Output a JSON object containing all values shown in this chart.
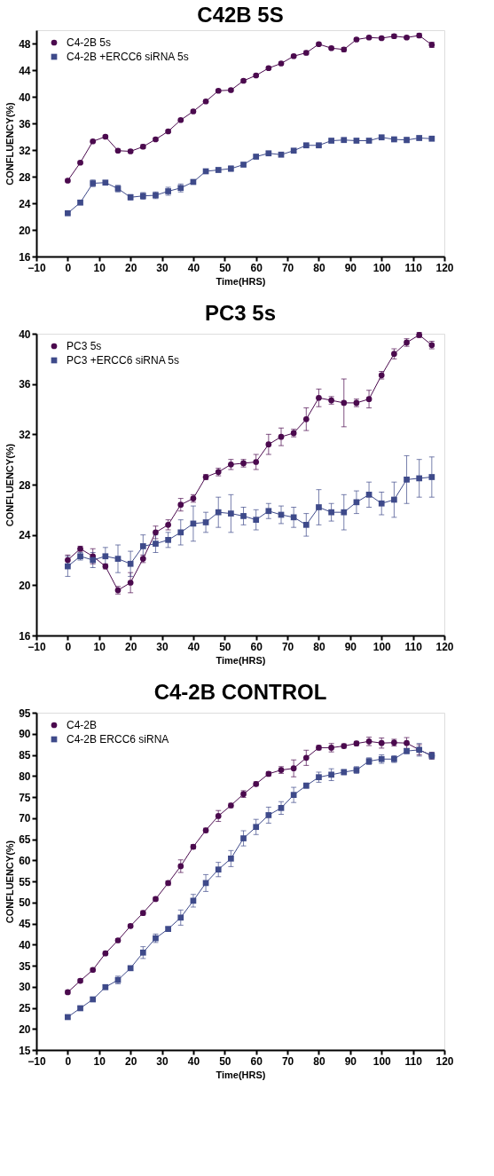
{
  "chart_data": [
    {
      "type": "line",
      "title": "C42B 5S",
      "xlabel": "Time(HRS)",
      "ylabel": "CONFLUENCY(%)",
      "xlim": [
        -10,
        120
      ],
      "xticks": [
        -10,
        0,
        10,
        20,
        30,
        40,
        50,
        60,
        70,
        80,
        90,
        100,
        110,
        120
      ],
      "ylim": [
        16,
        50
      ],
      "yticks": [
        16,
        20,
        24,
        28,
        32,
        36,
        40,
        44,
        48
      ],
      "grid": false,
      "legend": "top left",
      "marker": "circle",
      "line_style": "solid",
      "x": [
        0,
        4,
        8,
        12,
        16,
        20,
        24,
        28,
        32,
        36,
        40,
        44,
        48,
        52,
        56,
        60,
        64,
        68,
        72,
        76,
        80,
        84,
        88,
        92,
        96,
        100,
        104,
        108,
        112,
        116
      ],
      "series": [
        {
          "name": "C4-2B 5s",
          "color": "#4b0a4e",
          "marker": "circle",
          "values": [
            27.4,
            30.1,
            33.3,
            34.0,
            31.9,
            31.8,
            32.5,
            33.6,
            34.8,
            36.5,
            37.8,
            39.3,
            40.9,
            41.0,
            42.4,
            43.2,
            44.3,
            45.0,
            46.1,
            46.6,
            47.9,
            47.3,
            47.1,
            48.6,
            48.9,
            48.8,
            49.1,
            48.9,
            49.2,
            47.8
          ],
          "errors": [
            0.2,
            0.2,
            0.2,
            0.2,
            0.2,
            0.2,
            0.3,
            0.2,
            0.2,
            0.2,
            0.2,
            0.2,
            0.2,
            0.2,
            0.2,
            0.2,
            0.2,
            0.2,
            0.2,
            0.3,
            0.2,
            0.2,
            0.3,
            0.2,
            0.2,
            0.2,
            0.3,
            0.2,
            0.3,
            0.4
          ]
        },
        {
          "name": "C4-2B +ERCC6 siRNA 5s",
          "color": "#3e4a8a",
          "marker": "square",
          "values": [
            22.5,
            24.1,
            27.0,
            27.1,
            26.2,
            24.9,
            25.1,
            25.2,
            25.8,
            26.3,
            27.2,
            28.8,
            29.0,
            29.2,
            29.8,
            31.0,
            31.5,
            31.3,
            31.9,
            32.7,
            32.7,
            33.4,
            33.5,
            33.4,
            33.4,
            33.9,
            33.6,
            33.5,
            33.8,
            33.7
          ],
          "errors": [
            0.2,
            0.3,
            0.5,
            0.3,
            0.5,
            0.4,
            0.5,
            0.5,
            0.6,
            0.6,
            0.3,
            0.2,
            0.3,
            0.4,
            0.2,
            0.2,
            0.2,
            0.2,
            0.2,
            0.2,
            0.2,
            0.2,
            0.2,
            0.2,
            0.2,
            0.2,
            0.2,
            0.4,
            0.3,
            0.2
          ]
        }
      ]
    },
    {
      "type": "line",
      "title": "PC3 5s",
      "xlabel": "Time(HRS)",
      "ylabel": "CONFLUENCY(%)",
      "xlim": [
        -10,
        120
      ],
      "xticks": [
        -10,
        0,
        10,
        20,
        30,
        40,
        50,
        60,
        70,
        80,
        90,
        100,
        110,
        120
      ],
      "ylim": [
        16,
        40
      ],
      "yticks": [
        16,
        20,
        24,
        28,
        32,
        36,
        40
      ],
      "grid": false,
      "legend": "top left",
      "marker": "circle",
      "line_style": "solid",
      "x": [
        0,
        4,
        8,
        12,
        16,
        20,
        24,
        28,
        32,
        36,
        40,
        44,
        48,
        52,
        56,
        60,
        64,
        68,
        72,
        76,
        80,
        84,
        88,
        92,
        96,
        100,
        104,
        108,
        112,
        116
      ],
      "series": [
        {
          "name": "PC3 5s",
          "color": "#4b0a4e",
          "marker": "circle",
          "values": [
            22.0,
            22.9,
            22.3,
            21.5,
            19.6,
            20.2,
            22.1,
            24.2,
            24.8,
            26.4,
            26.9,
            28.6,
            29.0,
            29.6,
            29.7,
            29.8,
            31.2,
            31.8,
            32.1,
            33.2,
            34.9,
            34.7,
            34.5,
            34.5,
            34.8,
            36.7,
            38.4,
            39.3,
            39.9,
            39.1
          ],
          "errors": [
            0.4,
            0.2,
            0.6,
            0.2,
            0.3,
            0.8,
            0.3,
            0.5,
            0.4,
            0.5,
            0.3,
            0.2,
            0.3,
            0.4,
            0.3,
            0.6,
            0.8,
            0.7,
            0.3,
            0.9,
            0.7,
            0.3,
            1.9,
            0.3,
            0.7,
            0.3,
            0.4,
            0.3,
            0.2,
            0.3
          ]
        },
        {
          "name": "PC3 +ERCC6 siRNA 5s",
          "color": "#3e4a8a",
          "marker": "square",
          "values": [
            21.5,
            22.3,
            22.0,
            22.3,
            22.1,
            21.7,
            23.1,
            23.3,
            23.6,
            24.2,
            24.9,
            25.0,
            25.8,
            25.7,
            25.5,
            25.2,
            25.9,
            25.6,
            25.4,
            24.8,
            26.2,
            25.8,
            25.8,
            26.6,
            27.2,
            26.5,
            26.8,
            28.4,
            28.5,
            28.6
          ],
          "errors": [
            0.8,
            0.3,
            0.6,
            0.7,
            1.1,
            1.0,
            0.9,
            0.7,
            0.6,
            1.0,
            1.4,
            0.8,
            1.2,
            1.5,
            0.7,
            0.8,
            0.6,
            0.7,
            0.8,
            0.9,
            1.4,
            0.7,
            1.4,
            0.9,
            1.0,
            0.9,
            1.4,
            1.9,
            1.5,
            1.6
          ]
        }
      ]
    },
    {
      "type": "line",
      "title": "C4-2B CONTROL",
      "xlabel": "Time(HRS)",
      "ylabel": "CONFLUENCY(%)",
      "xlim": [
        -10,
        120
      ],
      "xticks": [
        -10,
        0,
        10,
        20,
        30,
        40,
        50,
        60,
        70,
        80,
        90,
        100,
        110,
        120
      ],
      "ylim": [
        15,
        95
      ],
      "yticks": [
        15,
        20,
        25,
        30,
        35,
        40,
        45,
        50,
        55,
        60,
        65,
        70,
        75,
        80,
        85,
        90,
        95
      ],
      "grid": false,
      "legend": "top left",
      "marker": "circle",
      "line_style": "solid",
      "x": [
        0,
        4,
        8,
        12,
        16,
        20,
        24,
        28,
        32,
        36,
        40,
        44,
        48,
        52,
        56,
        60,
        64,
        68,
        72,
        76,
        80,
        84,
        88,
        92,
        96,
        100,
        104,
        108,
        112,
        116
      ],
      "series": [
        {
          "name": "C4-2B",
          "color": "#4b0a4e",
          "marker": "circle",
          "values": [
            28.7,
            31.4,
            34.0,
            37.9,
            41.0,
            44.4,
            47.5,
            50.8,
            54.6,
            58.6,
            63.2,
            67.1,
            70.5,
            73.0,
            75.7,
            78.1,
            80.5,
            81.4,
            81.8,
            84.3,
            86.7,
            86.7,
            87.1,
            87.7,
            88.2,
            87.8,
            87.9,
            87.8,
            86.2,
            84.8
          ],
          "errors": [
            0.4,
            0.4,
            0.4,
            0.4,
            0.4,
            0.4,
            0.5,
            0.4,
            0.5,
            1.5,
            0.5,
            0.5,
            1.3,
            0.5,
            0.8,
            0.5,
            0.5,
            0.8,
            2.0,
            1.8,
            0.5,
            1.0,
            0.5,
            0.5,
            1.0,
            1.2,
            0.8,
            1.3,
            1.2,
            0.8
          ]
        },
        {
          "name": "C4-2B ERCC6 siRNA",
          "color": "#3e4a8a",
          "marker": "square",
          "values": [
            22.8,
            24.9,
            27.0,
            29.9,
            31.6,
            34.4,
            38.1,
            41.5,
            43.7,
            46.4,
            50.4,
            54.6,
            57.8,
            60.4,
            65.2,
            67.9,
            70.7,
            72.4,
            75.5,
            77.7,
            79.7,
            80.3,
            80.9,
            81.4,
            83.5,
            84.0,
            84.0,
            85.9,
            86.2,
            84.8
          ],
          "errors": [
            0.4,
            0.4,
            0.5,
            0.5,
            0.9,
            0.5,
            1.4,
            1.0,
            0.5,
            1.8,
            1.5,
            2.0,
            1.7,
            1.9,
            1.8,
            1.8,
            1.9,
            1.5,
            1.8,
            0.6,
            1.2,
            1.4,
            0.6,
            0.8,
            0.8,
            1.0,
            0.8,
            0.6,
            1.5,
            0.8
          ]
        }
      ]
    }
  ]
}
